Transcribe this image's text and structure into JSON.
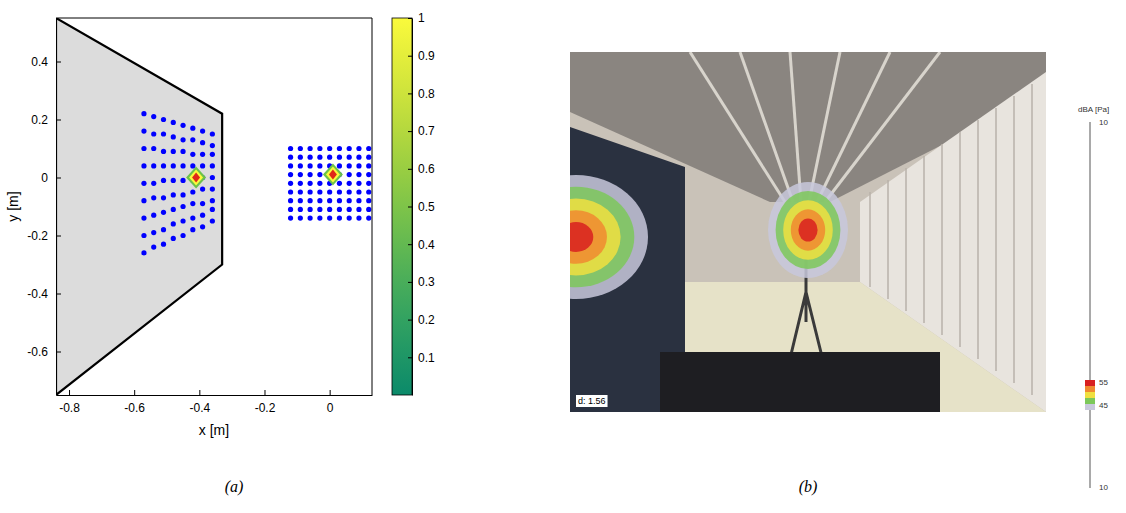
{
  "chart_data": {
    "type": "scatter",
    "x_label": "x [m]",
    "y_label": "y [m]",
    "xlim": [
      -0.84,
      0.13
    ],
    "ylim": [
      -0.75,
      0.55
    ],
    "xticks": [
      -0.8,
      -0.6,
      -0.4,
      -0.2,
      0
    ],
    "yticks": [
      -0.6,
      -0.4,
      -0.2,
      0,
      0.2,
      0.4
    ],
    "grid": false,
    "outline": {
      "x": [
        -0.84,
        -0.33,
        -0.33,
        -0.84
      ],
      "y": [
        0.55,
        0.22,
        -0.3,
        -0.75
      ]
    },
    "series": [
      {
        "color": "#0000ff",
        "marker": "circle",
        "x": [
          -0.57,
          -0.57,
          -0.57,
          -0.57,
          -0.57,
          -0.57,
          -0.57,
          -0.57,
          -0.57,
          -0.54,
          -0.54,
          -0.54,
          -0.54,
          -0.54,
          -0.54,
          -0.54,
          -0.54,
          -0.54,
          -0.51,
          -0.51,
          -0.51,
          -0.51,
          -0.51,
          -0.51,
          -0.51,
          -0.51,
          -0.51,
          -0.48,
          -0.48,
          -0.48,
          -0.48,
          -0.48,
          -0.48,
          -0.48,
          -0.48,
          -0.48,
          -0.45,
          -0.45,
          -0.45,
          -0.45,
          -0.45,
          -0.45,
          -0.45,
          -0.45,
          -0.45,
          -0.42,
          -0.42,
          -0.42,
          -0.42,
          -0.42,
          -0.42,
          -0.42,
          -0.42,
          -0.42,
          -0.39,
          -0.39,
          -0.39,
          -0.39,
          -0.39,
          -0.39,
          -0.39,
          -0.39,
          -0.39,
          -0.36,
          -0.36,
          -0.36,
          -0.36,
          -0.36,
          -0.36,
          -0.36,
          -0.36,
          -0.36
        ],
        "values": [
          -0.26,
          -0.2,
          -0.14,
          -0.08,
          -0.02,
          0.04,
          0.1,
          0.16,
          0.22,
          -0.24,
          -0.19,
          -0.13,
          -0.07,
          -0.02,
          0.04,
          0.1,
          0.15,
          0.21,
          -0.23,
          -0.18,
          -0.12,
          -0.07,
          -0.01,
          0.04,
          0.09,
          0.15,
          0.2,
          -0.21,
          -0.16,
          -0.11,
          -0.06,
          -0.01,
          0.04,
          0.09,
          0.14,
          0.19,
          -0.2,
          -0.15,
          -0.1,
          -0.06,
          -0.01,
          0.04,
          0.09,
          0.13,
          0.18,
          -0.18,
          -0.14,
          -0.09,
          -0.05,
          -0.01,
          0.04,
          0.08,
          0.13,
          0.17,
          -0.17,
          -0.13,
          -0.09,
          -0.04,
          0,
          0.04,
          0.08,
          0.12,
          0.16,
          -0.15,
          -0.11,
          -0.08,
          -0.04,
          0,
          0.04,
          0.08,
          0.11,
          0.15
        ]
      },
      {
        "color": "#0000ff",
        "marker": "circle",
        "x": [
          -0.12,
          -0.12,
          -0.12,
          -0.12,
          -0.12,
          -0.12,
          -0.12,
          -0.12,
          -0.12,
          -0.09,
          -0.09,
          -0.09,
          -0.09,
          -0.09,
          -0.09,
          -0.09,
          -0.09,
          -0.09,
          -0.06,
          -0.06,
          -0.06,
          -0.06,
          -0.06,
          -0.06,
          -0.06,
          -0.06,
          -0.06,
          -0.03,
          -0.03,
          -0.03,
          -0.03,
          -0.03,
          -0.03,
          -0.03,
          -0.03,
          -0.03,
          0,
          0,
          0,
          0,
          0,
          0,
          0,
          0,
          0,
          0.03,
          0.03,
          0.03,
          0.03,
          0.03,
          0.03,
          0.03,
          0.03,
          0.03,
          0.06,
          0.06,
          0.06,
          0.06,
          0.06,
          0.06,
          0.06,
          0.06,
          0.06,
          0.09,
          0.09,
          0.09,
          0.09,
          0.09,
          0.09,
          0.09,
          0.09,
          0.09,
          0.12,
          0.12,
          0.12,
          0.12,
          0.12,
          0.12,
          0.12,
          0.12,
          0.12
        ],
        "values": [
          -0.14,
          -0.11,
          -0.08,
          -0.05,
          -0.02,
          0.01,
          0.04,
          0.07,
          0.1,
          -0.14,
          -0.11,
          -0.08,
          -0.05,
          -0.02,
          0.01,
          0.04,
          0.07,
          0.1,
          -0.14,
          -0.11,
          -0.08,
          -0.05,
          -0.02,
          0.01,
          0.04,
          0.07,
          0.1,
          -0.14,
          -0.11,
          -0.08,
          -0.05,
          -0.02,
          0.01,
          0.04,
          0.07,
          0.1,
          -0.14,
          -0.11,
          -0.08,
          -0.05,
          -0.02,
          0.01,
          0.04,
          0.07,
          0.1,
          -0.14,
          -0.11,
          -0.08,
          -0.05,
          -0.02,
          0.01,
          0.04,
          0.07,
          0.1,
          -0.14,
          -0.11,
          -0.08,
          -0.05,
          -0.02,
          0.01,
          0.04,
          0.07,
          0.1,
          -0.14,
          -0.11,
          -0.08,
          -0.05,
          -0.02,
          0.01,
          0.04,
          0.07,
          0.1,
          -0.14,
          -0.11,
          -0.08,
          -0.05,
          -0.02,
          0.01,
          0.04,
          0.07,
          0.1
        ]
      }
    ],
    "sources": {
      "x": [
        -0.41,
        0.01
      ],
      "y": [
        0,
        0.01
      ],
      "values": [
        1,
        1
      ]
    },
    "colorbar": {
      "range": [
        0,
        1
      ],
      "ticks": [
        0.1,
        0.2,
        0.3,
        0.4,
        0.5,
        0.6,
        0.7,
        0.8,
        0.9,
        1
      ]
    }
  },
  "photo": {
    "scale_title": "dBA [Pa]",
    "scale_labels": [
      "10",
      "55",
      "45",
      "10"
    ],
    "distance_label": "d: 1.56"
  },
  "captions": [
    "(a)",
    "(b)"
  ]
}
